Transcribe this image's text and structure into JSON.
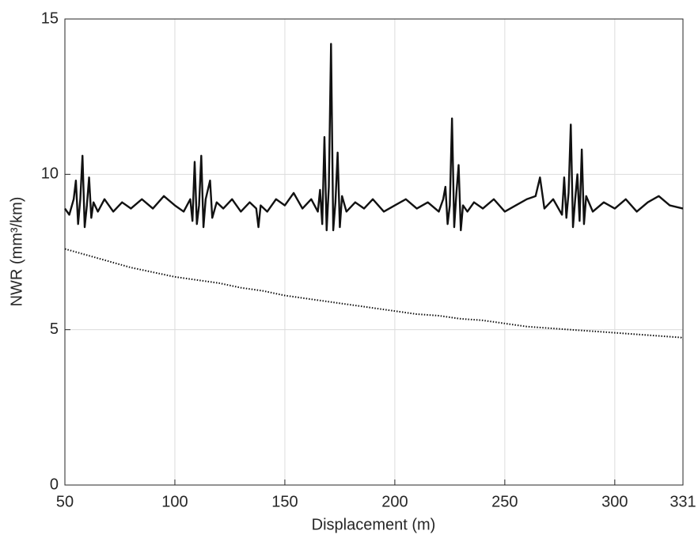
{
  "chart_data": {
    "type": "line",
    "xlabel": "Displacement (m)",
    "ylabel": "NWR (mm³/km)",
    "xlim": [
      50,
      331
    ],
    "xticks": [
      50,
      100,
      150,
      200,
      250,
      300,
      331
    ],
    "ylim": [
      0,
      15
    ],
    "yticks": [
      0,
      5,
      10,
      15
    ],
    "grid": true,
    "series": [
      {
        "color": "#111111",
        "style": "solid",
        "x": [
          50,
          52,
          54,
          55,
          56,
          57,
          58,
          59,
          60,
          61,
          62,
          63,
          65,
          68,
          72,
          76,
          80,
          85,
          90,
          95,
          100,
          104,
          107,
          108,
          109,
          110,
          111,
          112,
          113,
          114,
          116,
          117,
          119,
          122,
          126,
          130,
          134,
          137,
          138,
          139,
          142,
          146,
          150,
          154,
          158,
          162,
          165,
          166,
          167,
          168,
          169,
          170,
          171,
          172,
          173,
          174,
          175,
          176,
          178,
          182,
          186,
          190,
          195,
          200,
          205,
          210,
          215,
          220,
          222,
          223,
          224,
          225,
          226,
          227,
          228,
          229,
          230,
          231,
          233,
          236,
          240,
          245,
          250,
          255,
          260,
          264,
          266,
          268,
          272,
          276,
          277,
          278,
          279,
          280,
          281,
          282,
          283,
          284,
          285,
          286,
          287,
          290,
          295,
          300,
          305,
          310,
          315,
          320,
          325,
          331
        ],
        "values": [
          8.9,
          8.7,
          9.2,
          9.8,
          8.4,
          9.2,
          10.6,
          8.3,
          9.0,
          9.9,
          8.6,
          9.1,
          8.8,
          9.2,
          8.8,
          9.1,
          8.9,
          9.2,
          8.9,
          9.3,
          9.0,
          8.8,
          9.2,
          8.5,
          10.4,
          8.4,
          9.0,
          10.6,
          8.3,
          9.2,
          9.8,
          8.6,
          9.1,
          8.9,
          9.2,
          8.8,
          9.1,
          8.9,
          8.3,
          9.0,
          8.8,
          9.2,
          9.0,
          9.4,
          8.9,
          9.2,
          8.8,
          9.5,
          8.4,
          11.2,
          8.2,
          9.6,
          14.2,
          8.2,
          9.1,
          10.7,
          8.3,
          9.3,
          8.8,
          9.1,
          8.9,
          9.2,
          8.8,
          9.0,
          9.2,
          8.9,
          9.1,
          8.8,
          9.2,
          9.6,
          8.4,
          9.0,
          11.8,
          8.3,
          9.4,
          10.3,
          8.2,
          9.0,
          8.8,
          9.1,
          8.9,
          9.2,
          8.8,
          9.0,
          9.2,
          9.3,
          9.9,
          8.9,
          9.2,
          8.7,
          9.9,
          8.6,
          9.4,
          11.6,
          8.3,
          9.2,
          10.0,
          8.5,
          10.8,
          8.4,
          9.3,
          8.8,
          9.1,
          8.9,
          9.2,
          8.8,
          9.1,
          9.3,
          9.0,
          8.9
        ]
      },
      {
        "color": "#111111",
        "style": "dotted",
        "x": [
          50,
          60,
          70,
          80,
          90,
          100,
          110,
          120,
          130,
          140,
          150,
          160,
          170,
          180,
          190,
          200,
          210,
          220,
          230,
          240,
          250,
          260,
          270,
          280,
          290,
          300,
          310,
          320,
          330,
          331
        ],
        "values": [
          7.6,
          7.4,
          7.2,
          7.0,
          6.85,
          6.7,
          6.6,
          6.5,
          6.35,
          6.25,
          6.1,
          6.0,
          5.9,
          5.8,
          5.7,
          5.6,
          5.5,
          5.45,
          5.35,
          5.3,
          5.2,
          5.1,
          5.05,
          5.0,
          4.95,
          4.9,
          4.85,
          4.8,
          4.75,
          4.7
        ]
      }
    ]
  }
}
